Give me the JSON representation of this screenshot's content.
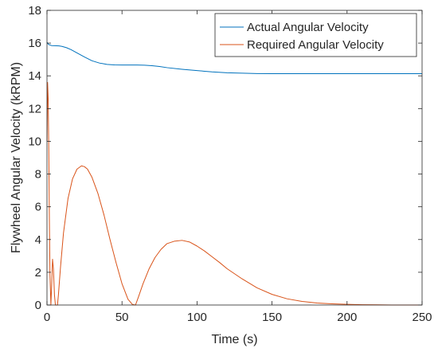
{
  "chart_data": {
    "type": "line",
    "xlabel": "Time (s)",
    "ylabel": "Flywheel Angular Velocity (kRPM)",
    "xlim": [
      0,
      250
    ],
    "ylim": [
      0,
      18
    ],
    "xticks": [
      0,
      50,
      100,
      150,
      200,
      250
    ],
    "yticks": [
      0,
      2,
      4,
      6,
      8,
      10,
      12,
      14,
      16,
      18
    ],
    "grid": false,
    "legend_position": "top-right",
    "series": [
      {
        "name": "Actual Angular Velocity",
        "color": "#0072BD",
        "x": [
          0,
          1,
          3,
          5,
          8,
          10,
          13,
          16,
          20,
          25,
          30,
          35,
          40,
          45,
          50,
          55,
          60,
          65,
          70,
          75,
          80,
          90,
          100,
          110,
          120,
          130,
          140,
          150,
          160,
          170,
          180,
          200,
          220,
          250
        ],
        "y": [
          16.05,
          15.92,
          15.85,
          15.84,
          15.83,
          15.8,
          15.72,
          15.6,
          15.4,
          15.15,
          14.92,
          14.78,
          14.7,
          14.67,
          14.66,
          14.66,
          14.66,
          14.65,
          14.62,
          14.57,
          14.5,
          14.4,
          14.32,
          14.24,
          14.19,
          14.16,
          14.14,
          14.13,
          14.13,
          14.13,
          14.13,
          14.13,
          14.13,
          14.13
        ]
      },
      {
        "name": "Required Angular Velocity",
        "color": "#D95319",
        "x": [
          0,
          0.4,
          0.8,
          1.2,
          1.6,
          2.0,
          2.6,
          3.2,
          3.7,
          4.3,
          5.0,
          5.6,
          6.3,
          7.0,
          7.6,
          9,
          11,
          14,
          17,
          20,
          23,
          25,
          27,
          30,
          34,
          38,
          42,
          46,
          50,
          54,
          57,
          59,
          61,
          64,
          68,
          72,
          76,
          80,
          85,
          90,
          95,
          100,
          105,
          110,
          115,
          120,
          130,
          140,
          150,
          160,
          170,
          180,
          190,
          200,
          210,
          220,
          230,
          240,
          250
        ],
        "y": [
          10.0,
          13.6,
          12.6,
          9.5,
          5.3,
          1.8,
          0.0,
          1.4,
          2.8,
          2.2,
          0.6,
          0.0,
          0.0,
          0.0,
          0.6,
          2.3,
          4.4,
          6.5,
          7.7,
          8.3,
          8.5,
          8.45,
          8.3,
          7.8,
          6.8,
          5.5,
          4.0,
          2.6,
          1.3,
          0.35,
          0.03,
          0.0,
          0.5,
          1.3,
          2.2,
          2.9,
          3.4,
          3.75,
          3.9,
          3.95,
          3.85,
          3.6,
          3.3,
          2.95,
          2.6,
          2.22,
          1.6,
          1.05,
          0.65,
          0.38,
          0.22,
          0.12,
          0.07,
          0.04,
          0.02,
          0.01,
          0.0,
          0.0,
          0.0
        ]
      }
    ]
  }
}
